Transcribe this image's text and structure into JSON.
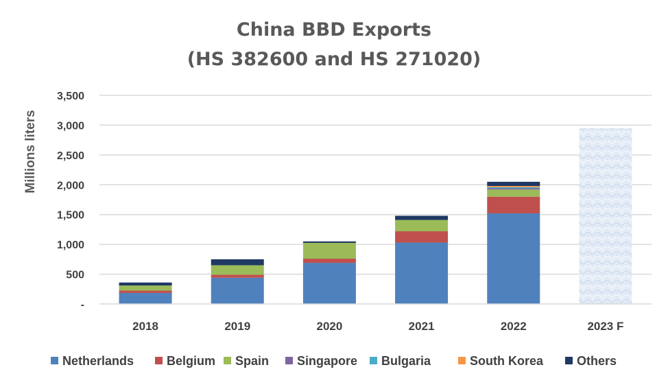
{
  "chart_data": {
    "type": "bar",
    "stacked": true,
    "title": [
      "China BBD Exports",
      "(HS 382600 and HS 271020)"
    ],
    "ylabel": "Millions liters",
    "xlabel": "",
    "ylim": [
      0,
      3500
    ],
    "y_ticks": [
      {
        "value": 0,
        "label": "-"
      },
      {
        "value": 500,
        "label": "500"
      },
      {
        "value": 1000,
        "label": "1,000"
      },
      {
        "value": 1500,
        "label": "1,500"
      },
      {
        "value": 2000,
        "label": "2,000"
      },
      {
        "value": 2500,
        "label": "2,500"
      },
      {
        "value": 3000,
        "label": "3,000"
      },
      {
        "value": 3500,
        "label": "3,500"
      }
    ],
    "grid": true,
    "legend_position": "bottom",
    "categories": [
      "2018",
      "2019",
      "2020",
      "2021",
      "2022",
      "2023 F"
    ],
    "series": [
      {
        "name": "Netherlands",
        "color": "#4f81bd",
        "values": [
          185,
          440,
          690,
          1030,
          1520,
          null
        ]
      },
      {
        "name": "Belgium",
        "color": "#c0504d",
        "values": [
          40,
          50,
          70,
          190,
          280,
          null
        ]
      },
      {
        "name": "Spain",
        "color": "#9bbb59",
        "values": [
          85,
          160,
          265,
          190,
          120,
          null
        ]
      },
      {
        "name": "Singapore",
        "color": "#8064a2",
        "values": [
          0,
          0,
          0,
          0,
          20,
          null
        ]
      },
      {
        "name": "Bulgaria",
        "color": "#4bacc6",
        "values": [
          0,
          0,
          0,
          0,
          20,
          null
        ]
      },
      {
        "name": "South Korea",
        "color": "#f79646",
        "values": [
          0,
          0,
          0,
          0,
          20,
          null
        ]
      },
      {
        "name": "Others",
        "color": "#1f3864",
        "values": [
          50,
          100,
          25,
          70,
          70,
          null
        ]
      }
    ],
    "forecast": {
      "category": "2023 F",
      "total": 2950,
      "fill": "#dce6f2",
      "pattern": "textured"
    }
  }
}
